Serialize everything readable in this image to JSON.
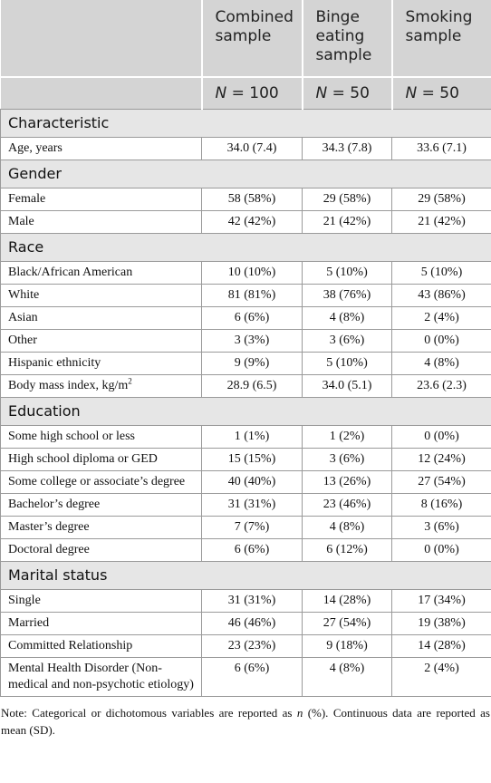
{
  "table": {
    "headers": [
      "Combined sample",
      "Binge eating sample",
      "Smoking sample"
    ],
    "n_row": [
      {
        "symbol": "N",
        "text": "= 100"
      },
      {
        "symbol": "N",
        "text": "= 50"
      },
      {
        "symbol": "N",
        "text": "= 50"
      }
    ],
    "sections": [
      {
        "title": "Characteristic",
        "rows": [
          {
            "label": "Age, years",
            "cells": [
              "34.0 (7.4)",
              "34.3 (7.8)",
              "33.6 (7.1)"
            ]
          }
        ]
      },
      {
        "title": "Gender",
        "rows": [
          {
            "label": "Female",
            "cells": [
              "58 (58%)",
              "29 (58%)",
              "29 (58%)"
            ]
          },
          {
            "label": "Male",
            "cells": [
              "42 (42%)",
              "21 (42%)",
              "21 (42%)"
            ]
          }
        ]
      },
      {
        "title": "Race",
        "rows": [
          {
            "label": "Black/African American",
            "cells": [
              "10 (10%)",
              "5 (10%)",
              "5 (10%)"
            ]
          },
          {
            "label": "White",
            "cells": [
              "81 (81%)",
              "38 (76%)",
              "43 (86%)"
            ]
          },
          {
            "label": "Asian",
            "cells": [
              "6 (6%)",
              "4 (8%)",
              "2 (4%)"
            ]
          },
          {
            "label": "Other",
            "cells": [
              "3 (3%)",
              "3 (6%)",
              "0 (0%)"
            ]
          },
          {
            "label": "Hispanic ethnicity",
            "cells": [
              "9 (9%)",
              "5 (10%)",
              "4 (8%)"
            ]
          },
          {
            "label": "Body mass index, kg/m",
            "sup": "2",
            "cells": [
              "28.9 (6.5)",
              "34.0 (5.1)",
              "23.6 (2.3)"
            ]
          }
        ]
      },
      {
        "title": "Education",
        "rows": [
          {
            "label": "Some high school or less",
            "cells": [
              "1 (1%)",
              "1 (2%)",
              "0 (0%)"
            ]
          },
          {
            "label": "High school diploma or GED",
            "cells": [
              "15 (15%)",
              "3 (6%)",
              "12 (24%)"
            ]
          },
          {
            "label": "Some college or associate’s degree",
            "cells": [
              "40 (40%)",
              "13 (26%)",
              "27 (54%)"
            ]
          },
          {
            "label": "Bachelor’s degree",
            "cells": [
              "31 (31%)",
              "23 (46%)",
              "8 (16%)"
            ]
          },
          {
            "label": "Master’s degree",
            "cells": [
              "7 (7%)",
              "4 (8%)",
              "3 (6%)"
            ]
          },
          {
            "label": "Doctoral degree",
            "cells": [
              "6 (6%)",
              "6 (12%)",
              "0 (0%)"
            ]
          }
        ]
      },
      {
        "title": "Marital status",
        "rows": [
          {
            "label": "Single",
            "cells": [
              "31 (31%)",
              "14 (28%)",
              "17 (34%)"
            ]
          },
          {
            "label": "Married",
            "cells": [
              "46 (46%)",
              "27 (54%)",
              "19 (38%)"
            ]
          },
          {
            "label": "Committed Relationship",
            "cells": [
              "23 (23%)",
              "9 (18%)",
              "14 (28%)"
            ]
          },
          {
            "label": "Mental Health Disorder (Non-medical and non-psychotic etiology)",
            "cells": [
              "6 (6%)",
              "4 (8%)",
              "2 (4%)"
            ]
          }
        ]
      }
    ]
  },
  "note": [
    "Note: Categorical or dichotomous variables are reported as ",
    "n",
    " (%). Continuous data are reported as mean (SD)."
  ]
}
